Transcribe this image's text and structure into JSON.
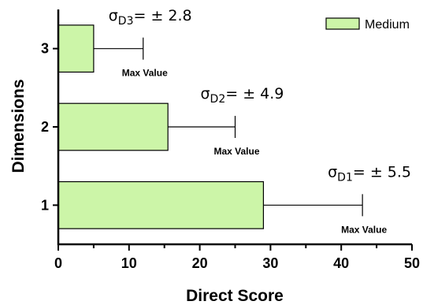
{
  "chart_data": {
    "type": "bar",
    "orientation": "horizontal",
    "categories": [
      "1",
      "2",
      "3"
    ],
    "series": [
      {
        "name": "Medium",
        "values": [
          29,
          15.5,
          5
        ],
        "error_max": [
          43,
          25,
          12
        ],
        "color": "#ccf5a8"
      }
    ],
    "annotations": [
      {
        "category": "1",
        "sigma_sub": "D1",
        "text": "= ± 5.5",
        "max_label": "Max Value"
      },
      {
        "category": "2",
        "sigma_sub": "D2",
        "text": "= ± 4.9",
        "max_label": "Max Value"
      },
      {
        "category": "3",
        "sigma_sub": "D3",
        "text": "= ± 2.8",
        "max_label": "Max Value"
      }
    ],
    "sigma_symbol": "σ",
    "xlabel": "Direct Score",
    "ylabel": "Dimensions",
    "xlim": [
      0,
      50
    ],
    "xticks": [
      0,
      10,
      20,
      30,
      40,
      50
    ],
    "grid": false,
    "legend_position": "top-right"
  }
}
